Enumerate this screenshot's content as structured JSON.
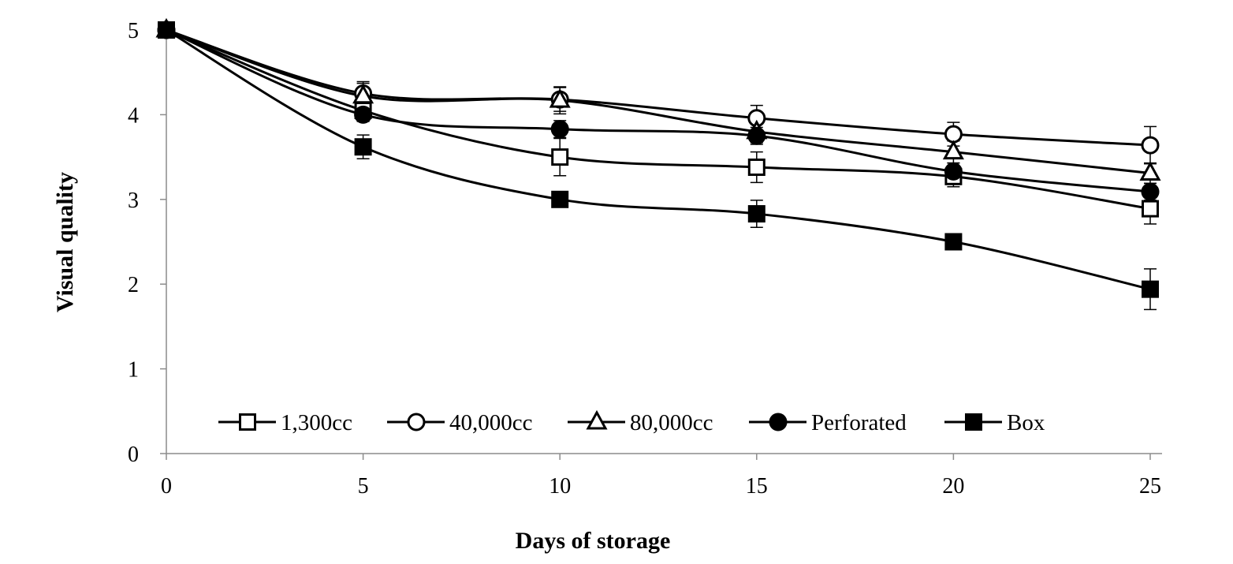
{
  "chart_data": {
    "type": "line",
    "xlabel": "Days of storage",
    "ylabel": "Visual quality",
    "xlim": [
      0,
      25
    ],
    "ylim": [
      0,
      5
    ],
    "x_ticks": [
      "0",
      "5",
      "10",
      "15",
      "20",
      "25"
    ],
    "y_ticks": [
      "0",
      "1",
      "2",
      "3",
      "4",
      "5"
    ],
    "grid": false,
    "legend_position": "bottom-inside",
    "x": [
      0,
      5,
      10,
      15,
      20,
      25
    ],
    "series": [
      {
        "name": "1,300cc",
        "marker": "square-open",
        "values": [
          5,
          4.05,
          3.5,
          3.38,
          3.27,
          2.89
        ],
        "errors": [
          0,
          0.1,
          0.22,
          0.18,
          0.12,
          0.18
        ]
      },
      {
        "name": "40,000cc",
        "marker": "circle-open",
        "values": [
          5,
          4.25,
          4.18,
          3.96,
          3.77,
          3.64
        ],
        "errors": [
          0,
          0.14,
          0.14,
          0.15,
          0.14,
          0.22
        ]
      },
      {
        "name": "80,000cc",
        "marker": "triangle-open",
        "values": [
          5,
          4.22,
          4.17,
          3.8,
          3.56,
          3.31
        ],
        "errors": [
          0,
          0.15,
          0.16,
          0.13,
          0.13,
          0.12
        ]
      },
      {
        "name": "Perforated",
        "marker": "circle-filled",
        "values": [
          5,
          4.0,
          3.83,
          3.75,
          3.33,
          3.09
        ],
        "errors": [
          0,
          0.08,
          0.1,
          0.1,
          0.1,
          0.1
        ]
      },
      {
        "name": "Box",
        "marker": "square-filled",
        "values": [
          5,
          3.62,
          3.0,
          2.83,
          2.5,
          1.94
        ],
        "errors": [
          0,
          0.14,
          0.06,
          0.16,
          0.07,
          0.24
        ]
      }
    ]
  }
}
